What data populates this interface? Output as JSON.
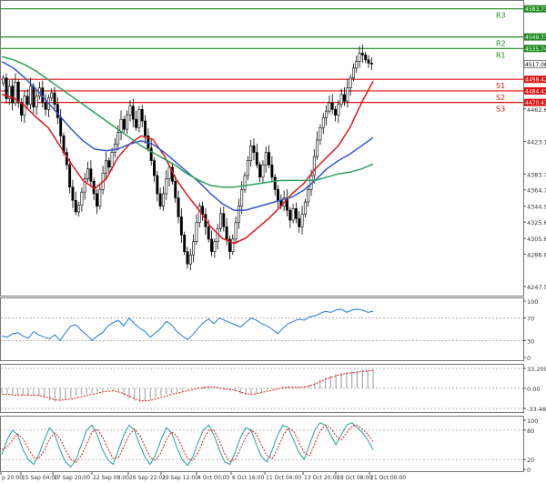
{
  "chart_data": {
    "type": "candlestick",
    "main": {
      "y_ticks": [
        "4462.60",
        "4423.15",
        "4383.75",
        "4364.70",
        "4344.90",
        "4325.65",
        "4305.85",
        "4286.80",
        "4247.55"
      ],
      "ylim": [
        4240,
        4590
      ],
      "levels": [
        {
          "name": "R3",
          "value": 4583.73,
          "label": "4583.73",
          "color": "#1f8a1f"
        },
        {
          "name": "R2",
          "value": 4549.73,
          "label": "4549.73",
          "color": "#1f8a1f"
        },
        {
          "name": "R1",
          "value": 4535.74,
          "label": "4535.74",
          "color": "#1f8a1f"
        },
        {
          "name": "S1",
          "value": 4498.42,
          "label": "4498.42",
          "color": "#e01010"
        },
        {
          "name": "S2",
          "value": 4484.43,
          "label": "4484.43",
          "color": "#e01010"
        },
        {
          "name": "S3",
          "value": 4470.43,
          "label": "4470.43",
          "color": "#e01010"
        }
      ],
      "current_price": "4517.06",
      "moving_averages": [
        {
          "color": "#e01818",
          "points": [
            4480,
            4476,
            4466,
            4452,
            4440,
            4418,
            4396,
            4376,
            4366,
            4378,
            4404,
            4420,
            4430,
            4426,
            4406,
            4378,
            4358,
            4340,
            4320,
            4306,
            4300,
            4306,
            4318,
            4330,
            4344,
            4360,
            4372,
            4390,
            4404,
            4418,
            4440,
            4470,
            4496
          ]
        },
        {
          "color": "#3355cc",
          "points": [
            4520,
            4512,
            4500,
            4486,
            4470,
            4454,
            4438,
            4424,
            4414,
            4412,
            4414,
            4420,
            4424,
            4420,
            4410,
            4398,
            4386,
            4374,
            4360,
            4348,
            4340,
            4340,
            4344,
            4348,
            4352,
            4356,
            4364,
            4376,
            4390,
            4400,
            4408,
            4418,
            4428
          ]
        },
        {
          "color": "#2e9e5a",
          "points": [
            4526,
            4522,
            4516,
            4508,
            4498,
            4488,
            4478,
            4468,
            4458,
            4448,
            4438,
            4428,
            4418,
            4410,
            4402,
            4394,
            4384,
            4376,
            4370,
            4368,
            4368,
            4370,
            4372,
            4374,
            4376,
            4376,
            4376,
            4376,
            4380,
            4384,
            4386,
            4390,
            4396
          ]
        }
      ]
    },
    "indicator_1": {
      "y_ticks": [
        "100",
        "70",
        "30",
        "0"
      ],
      "ylim": [
        0,
        100
      ],
      "levels": [
        70,
        30
      ],
      "line_color": "#2277dd",
      "values": [
        38,
        36,
        42,
        44,
        38,
        34,
        46,
        40,
        36,
        33,
        40,
        30,
        44,
        56,
        58,
        48,
        40,
        30,
        38,
        44,
        56,
        62,
        66,
        56,
        70,
        60,
        52,
        46,
        36,
        44,
        52,
        64,
        58,
        46,
        38,
        32,
        40,
        52,
        62,
        68,
        60,
        70,
        66,
        62,
        58,
        54,
        62,
        70,
        66,
        60,
        56,
        50,
        42,
        52,
        60,
        64,
        68,
        66,
        72,
        74,
        78,
        82,
        80,
        84,
        86,
        80,
        84,
        86,
        84,
        80,
        82
      ]
    },
    "indicator_2": {
      "y_ticks": [
        "33.209",
        "0.00",
        "-33.487"
      ],
      "ylim": [
        -33.487,
        33.209
      ],
      "levels": [
        33.209,
        0,
        -33.487
      ],
      "histogram_color": "#aaaaaa",
      "signal_color": "#e01818",
      "values": [
        -8,
        -9,
        -10,
        -11,
        -12,
        -11,
        -12,
        -13,
        -16,
        -20,
        -22,
        -21,
        -19,
        -16,
        -13,
        -10,
        -9,
        -8,
        -6,
        -4,
        -3,
        -4,
        -7,
        -12,
        -17,
        -21,
        -23,
        -21,
        -19,
        -16,
        -12,
        -10,
        -8,
        -6,
        -4,
        -2,
        0,
        2,
        3,
        3,
        1,
        -1,
        -2,
        -3,
        -5,
        -9,
        -12,
        -11,
        -9,
        -6,
        -3,
        -1,
        0,
        2,
        3,
        2,
        1,
        3,
        6,
        10,
        14,
        18,
        21,
        24,
        26,
        27,
        28,
        29,
        30,
        31,
        32
      ],
      "signal": [
        -10,
        -10,
        -11,
        -11,
        -11,
        -11,
        -12,
        -12,
        -14,
        -16,
        -19,
        -20,
        -19,
        -18,
        -16,
        -14,
        -12,
        -10,
        -8,
        -6,
        -5,
        -4,
        -6,
        -9,
        -13,
        -17,
        -20,
        -21,
        -20,
        -18,
        -15,
        -13,
        -10,
        -8,
        -6,
        -4,
        -2,
        0,
        1,
        2,
        2,
        1,
        -1,
        -2,
        -3,
        -6,
        -9,
        -10,
        -9,
        -7,
        -5,
        -3,
        -1,
        1,
        2,
        2,
        2,
        2,
        4,
        7,
        11,
        15,
        18,
        21,
        23,
        25,
        26,
        27,
        28,
        29,
        30
      ]
    },
    "indicator_3": {
      "y_ticks": [
        "100",
        "80",
        "20",
        "0"
      ],
      "ylim": [
        0,
        100
      ],
      "levels": [
        80,
        20
      ],
      "main_color": "#20a0a0",
      "signal_color": "#e01818",
      "main": [
        30,
        60,
        80,
        70,
        40,
        20,
        10,
        30,
        60,
        85,
        70,
        40,
        15,
        5,
        20,
        50,
        80,
        90,
        70,
        40,
        20,
        10,
        40,
        70,
        90,
        80,
        50,
        25,
        10,
        30,
        60,
        85,
        75,
        45,
        20,
        8,
        25,
        55,
        80,
        90,
        70,
        40,
        15,
        10,
        35,
        65,
        85,
        80,
        50,
        25,
        15,
        40,
        70,
        90,
        85,
        60,
        35,
        20,
        50,
        80,
        95,
        90,
        70,
        50,
        70,
        90,
        95,
        85,
        75,
        60,
        40
      ],
      "signal": [
        40,
        45,
        60,
        72,
        62,
        42,
        24,
        22,
        38,
        62,
        74,
        62,
        40,
        20,
        14,
        28,
        52,
        76,
        82,
        66,
        42,
        22,
        24,
        46,
        70,
        82,
        70,
        46,
        24,
        18,
        34,
        60,
        76,
        68,
        44,
        22,
        18,
        34,
        60,
        80,
        80,
        58,
        32,
        16,
        20,
        42,
        66,
        80,
        72,
        48,
        28,
        22,
        42,
        68,
        84,
        78,
        56,
        34,
        28,
        52,
        78,
        90,
        84,
        68,
        60,
        74,
        88,
        90,
        82,
        72,
        56
      ]
    },
    "x_labels": [
      "p 20:00",
      "15 Sep 04:00",
      "17 Sep 20:00",
      "22 Sep 08:00",
      "26 Sep 22:01",
      "29 Sep 12:00",
      "4 Oct 00:00",
      "6 Oct 16:00",
      "11 Oct 04:00",
      "13 Oct 20:00",
      "18 Oct 08:00",
      "21 Oct 00:00"
    ],
    "candles_close": [
      4500,
      4475,
      4490,
      4470,
      4495,
      4470,
      4455,
      4478,
      4468,
      4490,
      4465,
      4478,
      4488,
      4470,
      4462,
      4476,
      4482,
      4468,
      4452,
      4430,
      4410,
      4395,
      4368,
      4352,
      4338,
      4346,
      4362,
      4378,
      4390,
      4375,
      4360,
      4345,
      4365,
      4385,
      4400,
      4392,
      4410,
      4420,
      4434,
      4450,
      4438,
      4455,
      4466,
      4450,
      4440,
      4462,
      4448,
      4430,
      4415,
      4400,
      4382,
      4360,
      4345,
      4360,
      4378,
      4392,
      4375,
      4355,
      4332,
      4310,
      4290,
      4275,
      4286,
      4302,
      4325,
      4345,
      4335,
      4320,
      4305,
      4290,
      4302,
      4318,
      4336,
      4320,
      4305,
      4290,
      4305,
      4325,
      4345,
      4365,
      4382,
      4400,
      4418,
      4410,
      4395,
      4380,
      4395,
      4410,
      4395,
      4380,
      4365,
      4352,
      4345,
      4355,
      4340,
      4328,
      4342,
      4330,
      4320,
      4335,
      4350,
      4365,
      4382,
      4405,
      4425,
      4440,
      4452,
      4460,
      4470,
      4462,
      4455,
      4468,
      4480,
      4472,
      4488,
      4500,
      4512,
      4520,
      4530,
      4528,
      4522,
      4518,
      4517
    ]
  }
}
